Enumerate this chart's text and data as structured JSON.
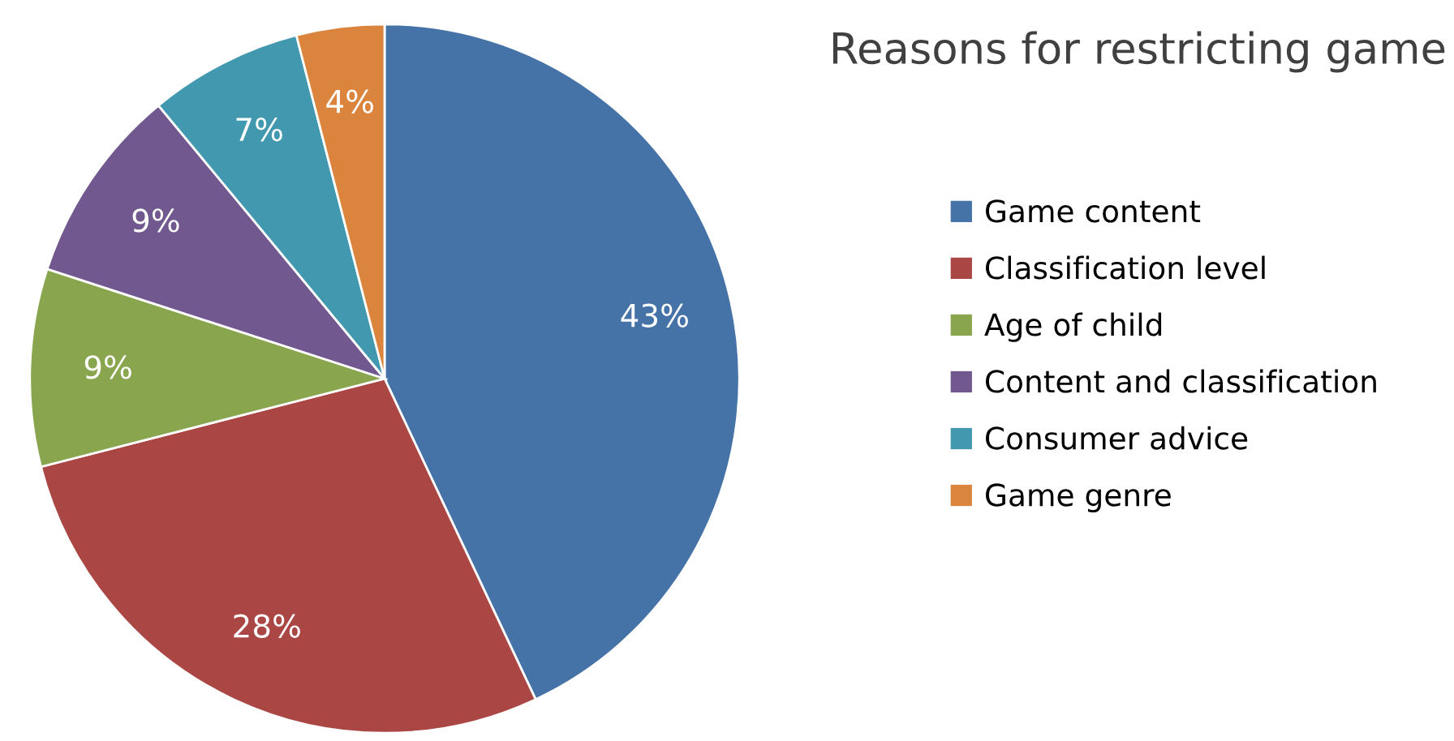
{
  "chart_data": {
    "type": "pie",
    "title": "Reasons for restricting game",
    "categories": [
      "Game content",
      "Classification level",
      "Age of child",
      "Content and classification",
      "Consumer advice",
      "Game genre"
    ],
    "values": [
      43,
      28,
      9,
      9,
      7,
      4
    ],
    "colors": [
      "#4572a7",
      "#aa4643",
      "#89a54e",
      "#71588f",
      "#4198af",
      "#db843d"
    ],
    "value_labels": [
      "43%",
      "28%",
      "9%",
      "9%",
      "7%",
      "4%"
    ],
    "legend": "right"
  }
}
